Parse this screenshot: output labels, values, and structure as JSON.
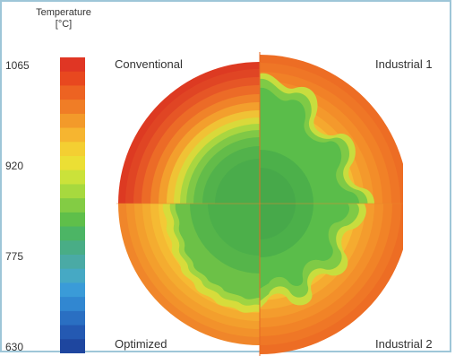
{
  "legend": {
    "title_line1": "Temperature",
    "title_line2": "[°C]",
    "ticks": [
      "1065",
      "920",
      "775",
      "630"
    ],
    "colors": [
      "#e03624",
      "#e8481f",
      "#ed6322",
      "#f07d26",
      "#f39a2a",
      "#f6b530",
      "#f4cf32",
      "#ecdf34",
      "#cbe23a",
      "#a7d93e",
      "#83cc44",
      "#5fbf4a",
      "#4cb565",
      "#49ad86",
      "#4aaaa5",
      "#46a9c4",
      "#3a9bd8",
      "#3187d1",
      "#2a6fc2",
      "#2459b2",
      "#1e469f"
    ]
  },
  "quadrants": {
    "top_left": "Conventional",
    "top_right": "Industrial 1",
    "bottom_left": "Optimized",
    "bottom_right": "Industrial 2"
  },
  "palette": {
    "frame": "#9ec6d8",
    "core_green": "#4cb04a"
  }
}
